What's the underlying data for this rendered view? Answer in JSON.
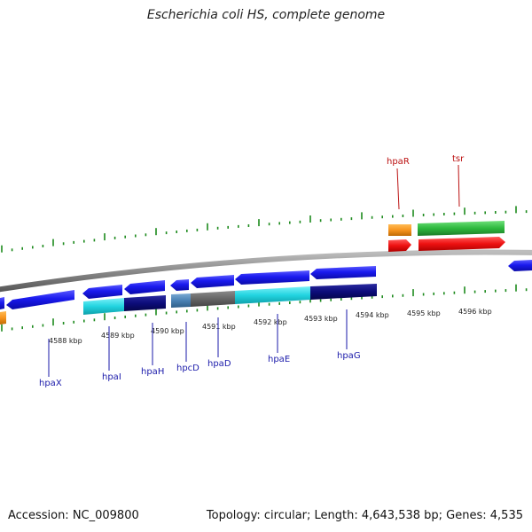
{
  "title": "Escherichia coli HS, complete genome",
  "footer": {
    "accession": "Accession: NC_009800",
    "topology": "Topology: circular; Length: 4,643,538 bp; Genes: 4,535"
  },
  "colors": {
    "backbone": "#8a8a8a",
    "forward": "#1a1aee",
    "cyan": "#22d4e0",
    "navy": "#0c0c7a",
    "steel": "#4a82b4",
    "gray": "#666666",
    "orange": "#f7941d",
    "red": "#ee1111",
    "green": "#2db83d",
    "tick": "#1d8a1d",
    "label_blue": "#1a1aaa",
    "label_red": "#bb1111"
  },
  "scale_labels": [
    "4588 kbp",
    "4589 kbp",
    "4590 kbp",
    "4591 kbp",
    "4592 kbp",
    "4593 kbp",
    "4594 kbp",
    "4595 kbp",
    "4596 kbp"
  ],
  "genes_bottom": [
    "hpaX",
    "hpaI",
    "hpaH",
    "hpcD",
    "hpaD",
    "hpaE",
    "hpaG"
  ],
  "genes_top": [
    "hpaR",
    "tsr"
  ]
}
